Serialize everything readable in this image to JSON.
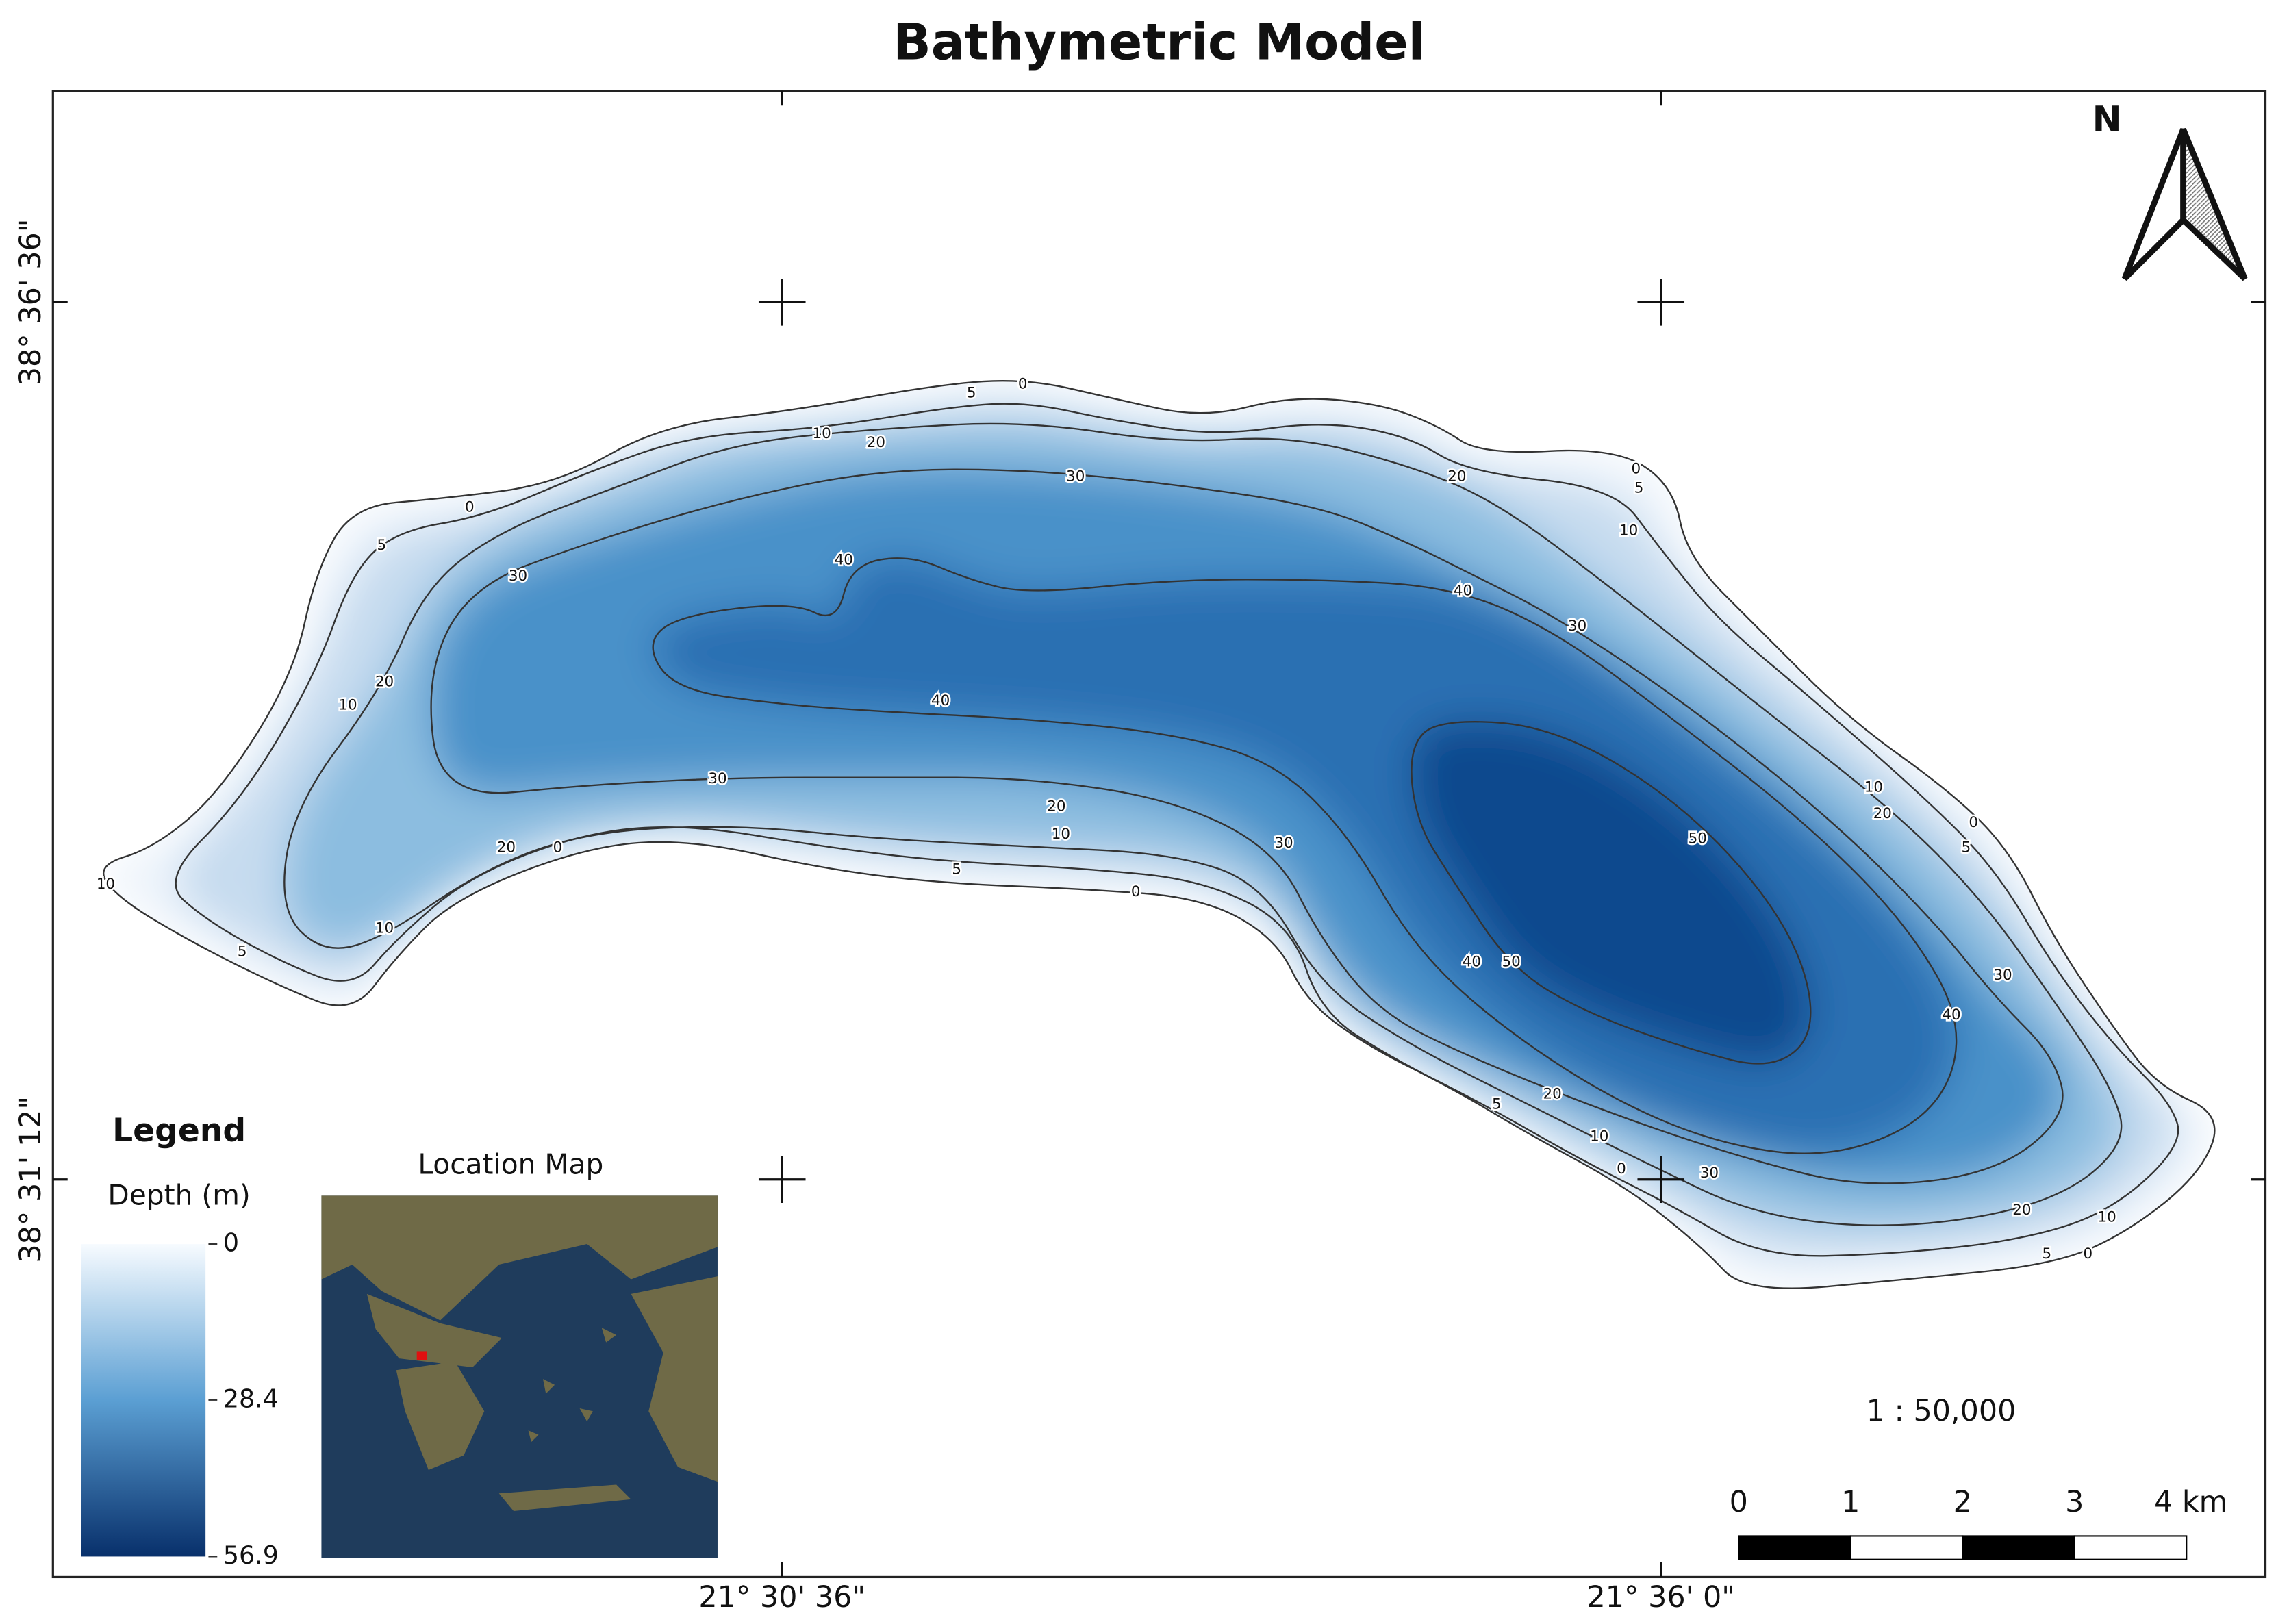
{
  "title": "Bathymetric Model",
  "north": "N",
  "grid": {
    "x_labels": [
      "21° 30' 36\"",
      "21° 36' 0\""
    ],
    "y_labels": [
      "38° 36' 36\"",
      "38° 31' 12\""
    ]
  },
  "legend": {
    "title": "Legend",
    "label": "Depth (m)",
    "ticks": [
      0,
      28.4,
      56.9
    ]
  },
  "location_map": {
    "title": "Location Map"
  },
  "scale": {
    "ratio": "1 : 50,000",
    "labels": [
      0,
      1,
      2,
      3,
      "4 km"
    ]
  },
  "contour_labels": [
    0,
    5,
    10,
    20,
    30,
    0,
    5,
    30,
    40,
    20,
    10,
    40,
    30,
    20,
    0,
    10,
    10,
    5,
    20,
    10,
    5,
    0,
    30,
    20,
    0,
    5,
    10,
    40,
    30,
    10,
    20,
    0,
    5,
    50,
    30,
    40,
    40,
    50,
    5,
    20,
    10,
    0,
    30,
    20,
    10,
    5,
    0
  ]
}
